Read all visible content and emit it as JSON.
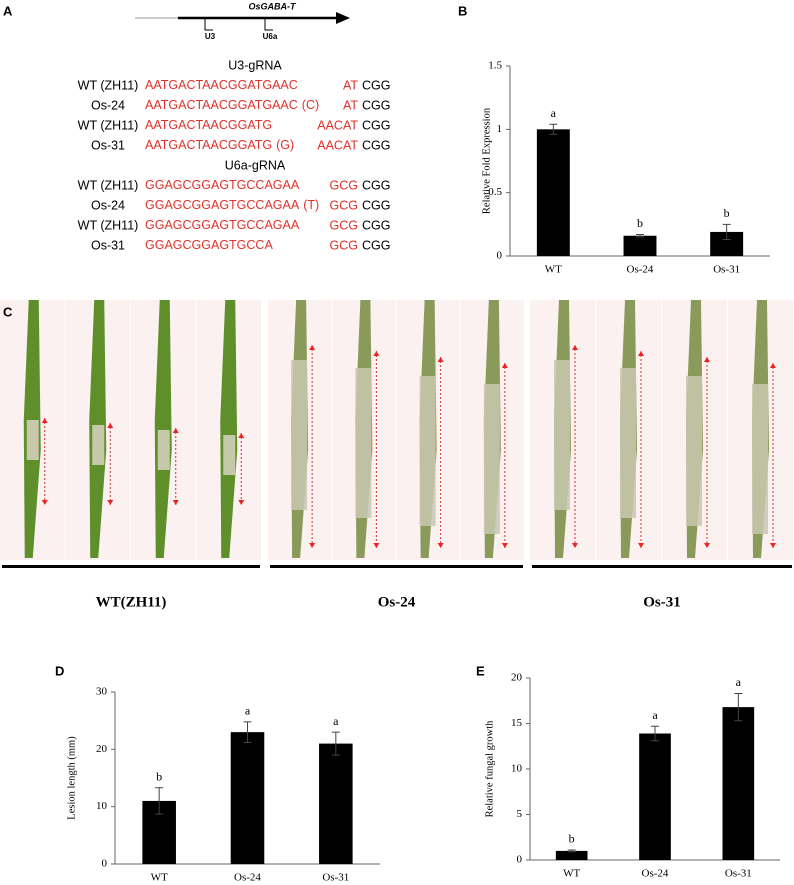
{
  "panel_labels": [
    "A",
    "B",
    "C",
    "D",
    "E"
  ],
  "gene_diagram": {
    "gene": "OsGABA-T",
    "promoters": [
      "U3",
      "U6a"
    ]
  },
  "sequences": [
    {
      "title": "U3-gRNA",
      "rows": [
        {
          "name": "WT (ZH11)",
          "seq": "AATGACTAACGGATGAAC",
          "tail": "AT",
          "pam": "CGG"
        },
        {
          "name": "Os-24",
          "seq": "AATGACTAACGGATGAAC",
          "insert": "(C)",
          "tail": "AT",
          "pam": "CGG"
        },
        {
          "name": "WT (ZH11)",
          "seq": "AATGACTAACGGATG",
          "tail": "AACAT",
          "pam": "CGG"
        },
        {
          "name": "Os-31",
          "seq": "AATGACTAACGGATG",
          "insert": "(G)",
          "tail": "AACAT",
          "pam": "CGG"
        }
      ]
    },
    {
      "title": "U6a-gRNA",
      "rows": [
        {
          "name": "WT (ZH11)",
          "seq": "GGAGCGGAGTGCCAGAA",
          "tail": "GCG",
          "pam": "CGG"
        },
        {
          "name": "Os-24",
          "seq": "GGAGCGGAGTGCCAGAA",
          "insert": "(T)",
          "tail": "GCG",
          "pam": "CGG"
        },
        {
          "name": "WT (ZH11)",
          "seq": "GGAGCGGAGTGCCAGAA",
          "tail": "GCG",
          "pam": "CGG"
        },
        {
          "name": "Os-31",
          "seq": "GGAGCGGAGTGCCA",
          "tail": "GCG",
          "pam": "CGG"
        }
      ]
    }
  ],
  "photo_groups": [
    "WT(ZH11)",
    "Os-24",
    "Os-31"
  ],
  "chart_data": [
    {
      "type": "bar",
      "y_label": "Relative Fold Expression",
      "categories": [
        "WT",
        "Os-24",
        "Os-31"
      ],
      "values": [
        1.0,
        0.16,
        0.19
      ],
      "errors": [
        0.04,
        0.01,
        0.06
      ],
      "annotations": [
        "a",
        "b",
        "b"
      ],
      "color": "#000000",
      "ylim": [
        0,
        1.5
      ],
      "yticks": [
        0,
        0.5,
        1,
        1.5
      ]
    },
    {
      "type": "bar",
      "y_label": "Lesion length (mm)",
      "categories": [
        "WT",
        "Os-24",
        "Os-31"
      ],
      "values": [
        11,
        23,
        21
      ],
      "errors": [
        2.3,
        1.8,
        2
      ],
      "annotations": [
        "b",
        "a",
        "a"
      ],
      "color": "#000000",
      "ylim": [
        0,
        30
      ],
      "yticks": [
        0,
        10,
        20,
        30
      ]
    },
    {
      "type": "bar",
      "y_label": "Relative fungal growth",
      "categories": [
        "WT",
        "Os-24",
        "Os-31"
      ],
      "values": [
        1,
        13.9,
        16.8
      ],
      "errors": [
        0.1,
        0.8,
        1.5
      ],
      "annotations": [
        "b",
        "a",
        "a"
      ],
      "color": "#000000",
      "ylim": [
        0,
        20
      ],
      "yticks": [
        0,
        5,
        10,
        15,
        20
      ]
    }
  ]
}
